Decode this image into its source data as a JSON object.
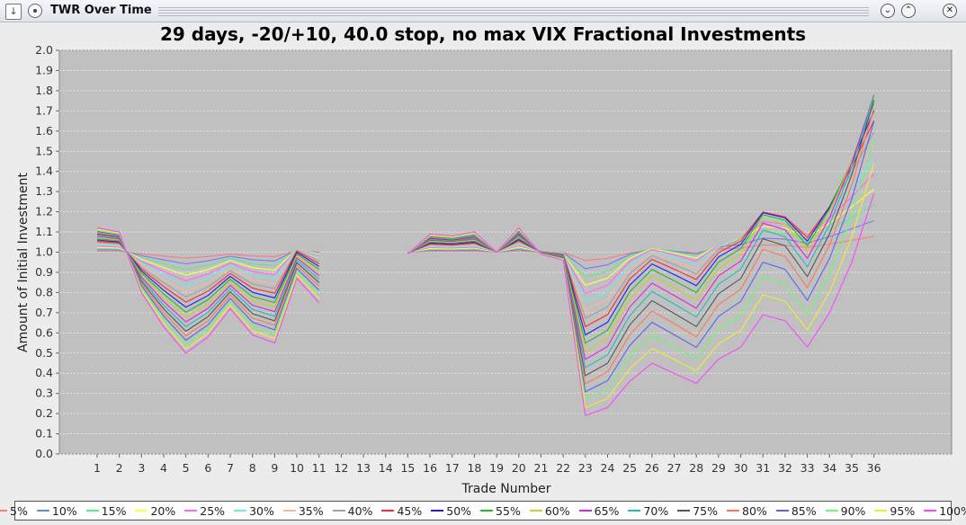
{
  "window": {
    "title": "TWR Over Time"
  },
  "chart_data": {
    "type": "line",
    "title": "29 days, -20/+10, 40.0 stop, no max VIX Fractional Investments",
    "xlabel": "Trade Number",
    "ylabel": "Amount of Initial Investment",
    "ylim": [
      0.0,
      2.0
    ],
    "yticks": [
      "0.0",
      "0.1",
      "0.2",
      "0.3",
      "0.4",
      "0.5",
      "0.6",
      "0.7",
      "0.8",
      "0.9",
      "1.0",
      "1.1",
      "1.2",
      "1.3",
      "1.4",
      "1.5",
      "1.6",
      "1.7",
      "1.8",
      "1.9",
      "2.0"
    ],
    "xticks": [
      "1",
      "2",
      "3",
      "4",
      "5",
      "6",
      "7",
      "8",
      "9",
      "10",
      "11",
      "12",
      "13",
      "14",
      "15",
      "16",
      "17",
      "18",
      "19",
      "20",
      "21",
      "22",
      "23",
      "24",
      "25",
      "26",
      "27",
      "28",
      "29",
      "30",
      "31",
      "32",
      "33",
      "34",
      "35",
      "36"
    ],
    "grid": true,
    "legend_position": "bottom",
    "background": "#c0c0c0",
    "fractions": [
      0.05,
      0.1,
      0.15,
      0.2,
      0.25,
      0.3,
      0.35,
      0.4,
      0.45,
      0.5,
      0.55,
      0.6,
      0.65,
      0.7,
      0.75,
      0.8,
      0.85,
      0.9,
      0.95,
      1.0
    ],
    "series_names": [
      "5%",
      "10%",
      "15%",
      "20%",
      "25%",
      "30%",
      "35%",
      "40%",
      "45%",
      "50%",
      "55%",
      "60%",
      "65%",
      "70%",
      "75%",
      "80%",
      "85%",
      "90%",
      "95%",
      "100%"
    ],
    "series_colors": [
      "#ff7a7a",
      "#6f7cff",
      "#55ee88",
      "#ffff44",
      "#ff66ff",
      "#66eeee",
      "#ffb3a0",
      "#a0a0a0",
      "#ff2a2a",
      "#1a1aff",
      "#22bb22",
      "#cccc22",
      "#dd22dd",
      "#22bbbb",
      "#555555",
      "#ff7750",
      "#5566ee",
      "#66ff66",
      "#eeee33",
      "#ff44ff"
    ],
    "full_series_x": [
      1,
      2,
      3,
      4,
      5,
      6,
      7,
      8,
      9,
      10,
      11,
      null,
      null,
      null,
      15,
      16,
      17,
      18,
      19,
      20,
      21,
      22,
      23,
      24,
      25,
      26,
      27,
      28,
      29,
      30,
      31,
      32,
      33,
      34,
      35,
      36
    ],
    "full_series_y_100pct": [
      1.12,
      1.1,
      0.8,
      0.63,
      0.5,
      0.58,
      0.72,
      0.59,
      0.55,
      0.87,
      0.75,
      null,
      null,
      null,
      0.99,
      1.09,
      1.08,
      1.1,
      1.0,
      1.12,
      0.99,
      0.96,
      0.19,
      0.23,
      0.36,
      0.45,
      0.4,
      0.35,
      0.47,
      0.53,
      0.69,
      0.66,
      0.53,
      0.7,
      0.95,
      1.29
    ],
    "endpoints_at_trade_36": {
      "5%": 1.09,
      "10%": 1.19,
      "20%": 1.38,
      "50%": 1.88,
      "100%": 1.29
    }
  }
}
